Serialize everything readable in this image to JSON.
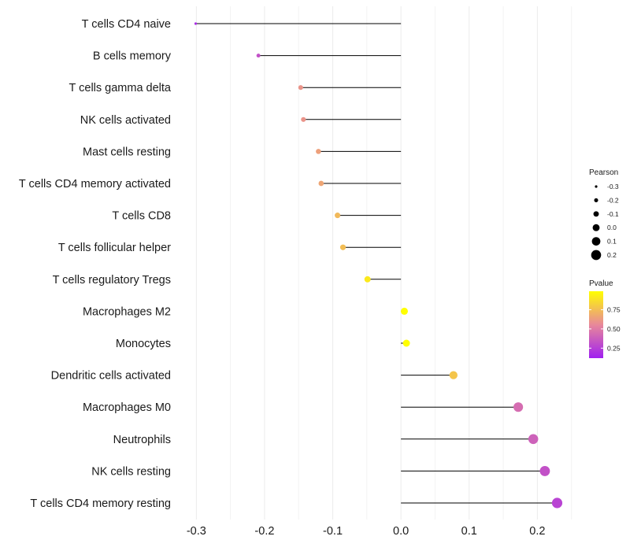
{
  "chart_data": {
    "type": "lollipop",
    "xlim": [
      -0.32,
      0.255
    ],
    "x_ticks": [
      -0.3,
      -0.2,
      -0.1,
      0.0,
      0.1,
      0.2
    ],
    "x_tick_labels": [
      "-0.3",
      "-0.2",
      "-0.1",
      "0.0",
      "0.1",
      "0.2"
    ],
    "x_minor_ticks": [
      -0.25,
      -0.15,
      -0.05,
      0.05,
      0.15,
      0.25
    ],
    "xlabel": "",
    "ylabel": "",
    "categories": [
      "T cells CD4 naive",
      "B cells memory",
      "T cells gamma delta",
      "NK cells activated",
      "Mast cells resting",
      "T cells CD4 memory activated",
      "T cells CD8",
      "T cells follicular helper",
      "T cells regulatory  Tregs ",
      "Macrophages M2",
      "Monocytes",
      "Dendritic cells activated",
      "Macrophages M0",
      "Neutrophils",
      "NK cells resting",
      "T cells CD4 memory resting"
    ],
    "pearson": [
      -0.301,
      -0.209,
      -0.147,
      -0.143,
      -0.121,
      -0.117,
      -0.093,
      -0.085,
      -0.049,
      0.005,
      0.008,
      0.077,
      0.172,
      0.194,
      0.211,
      0.229
    ],
    "pvalue": [
      0.17,
      0.3,
      0.55,
      0.55,
      0.6,
      0.62,
      0.7,
      0.72,
      0.9,
      0.99,
      0.99,
      0.75,
      0.4,
      0.36,
      0.3,
      0.25
    ],
    "legend": {
      "size_title": "Pearson",
      "size_labels": [
        "-0.3",
        "-0.2",
        "-0.1",
        "0.0",
        "0.1",
        "0.2"
      ],
      "size_values": [
        -0.3,
        -0.2,
        -0.1,
        0.0,
        0.1,
        0.2
      ],
      "color_title": "Pvalue",
      "color_labels": [
        "0.75",
        "0.50",
        "0.25"
      ],
      "color_values": [
        0.75,
        0.5,
        0.25
      ],
      "color_range": [
        0.12,
        0.99
      ],
      "placement": "right"
    },
    "colors": {
      "low": "#a020f0",
      "mid": "#e8889a",
      "high": "#ffff00",
      "segment": "#000000",
      "grid": "#ebebeb"
    }
  }
}
